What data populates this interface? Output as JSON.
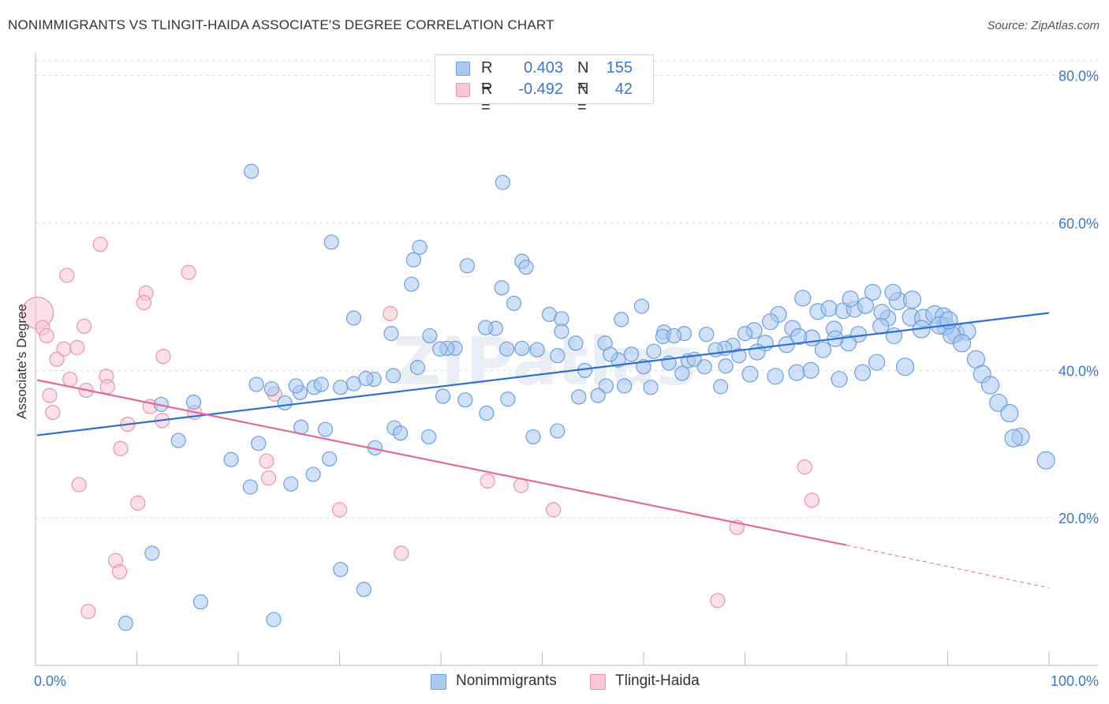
{
  "header": {
    "title": "NONIMMIGRANTS VS TLINGIT-HAIDA ASSOCIATE'S DEGREE CORRELATION CHART",
    "source": "Source: ZipAtlas.com"
  },
  "legend": {
    "rows": [
      {
        "r_label": "R =",
        "r_value": "0.403",
        "n_label": "N =",
        "n_value": "155"
      },
      {
        "r_label": "R =",
        "r_value": "-0.492",
        "n_label": "N =",
        "n_value": "42"
      }
    ],
    "series": [
      "Nonimmigrants",
      "Tlingit-Haida"
    ]
  },
  "colors": {
    "blue_fill": "#aac8f0",
    "blue_stroke": "#6a9fe0",
    "blue_line": "#2f6fcf",
    "pink_fill": "#f8c6d5",
    "pink_stroke": "#ec92ad",
    "pink_line": "#e46a94",
    "tick_text": "#3b78c9",
    "grid": "#d9d9d9"
  },
  "watermark": "ZIPatlas",
  "chart_data": {
    "type": "scatter",
    "title": "NONIMMIGRANTS VS TLINGIT-HAIDA ASSOCIATE'S DEGREE CORRELATION CHART",
    "xlabel": "",
    "ylabel": "Associate's Degree",
    "xlim": [
      0,
      100
    ],
    "ylim": [
      0,
      82
    ],
    "x_tick_labels": [
      "0.0%",
      "100.0%"
    ],
    "y_ticks": [
      20,
      40,
      60,
      80
    ],
    "y_tick_labels": [
      "20.0%",
      "40.0%",
      "60.0%",
      "80.0%"
    ],
    "grid": true,
    "legend_position": "top-center",
    "series": [
      {
        "name": "Nonimmigrants",
        "color": "#6a9fe0",
        "r": 0.403,
        "n": 155,
        "trend": {
          "x": [
            0,
            100
          ],
          "y": [
            31.2,
            47.8
          ]
        },
        "points": [
          [
            21.3,
            67.0
          ],
          [
            46.1,
            65.5
          ],
          [
            29.2,
            57.4
          ],
          [
            37.9,
            56.7
          ],
          [
            37.3,
            55.0
          ],
          [
            42.6,
            54.2
          ],
          [
            48.0,
            54.8
          ],
          [
            48.4,
            54.0
          ],
          [
            37.1,
            51.7
          ],
          [
            46.0,
            51.2
          ],
          [
            47.2,
            49.1
          ],
          [
            31.4,
            47.1
          ],
          [
            50.7,
            47.6
          ],
          [
            51.9,
            47.0
          ],
          [
            59.8,
            48.7
          ],
          [
            57.8,
            46.9
          ],
          [
            45.4,
            45.7
          ],
          [
            35.1,
            45.0
          ],
          [
            38.9,
            44.7
          ],
          [
            51.9,
            45.3
          ],
          [
            53.3,
            43.7
          ],
          [
            62.0,
            45.2
          ],
          [
            64.0,
            45.0
          ],
          [
            61.9,
            44.6
          ],
          [
            63.0,
            44.7
          ],
          [
            66.2,
            44.9
          ],
          [
            68.8,
            43.4
          ],
          [
            68.0,
            43.0
          ],
          [
            70.9,
            45.4
          ],
          [
            73.3,
            47.6
          ],
          [
            75.7,
            49.8
          ],
          [
            77.2,
            48.0
          ],
          [
            78.3,
            48.4
          ],
          [
            79.7,
            48.1
          ],
          [
            80.8,
            48.3
          ],
          [
            81.9,
            48.8
          ],
          [
            84.1,
            47.1
          ],
          [
            85.1,
            49.4
          ],
          [
            86.4,
            47.2
          ],
          [
            83.5,
            47.9
          ],
          [
            80.4,
            49.7
          ],
          [
            82.6,
            50.6
          ],
          [
            84.6,
            50.6
          ],
          [
            86.5,
            49.6
          ],
          [
            87.6,
            47.1
          ],
          [
            88.7,
            47.6
          ],
          [
            89.6,
            47.3
          ],
          [
            90.8,
            45.0
          ],
          [
            91.9,
            45.3
          ],
          [
            89.8,
            46.0
          ],
          [
            74.7,
            45.7
          ],
          [
            72.5,
            46.6
          ],
          [
            70.0,
            45.0
          ],
          [
            76.6,
            44.4
          ],
          [
            78.8,
            45.6
          ],
          [
            81.2,
            44.9
          ],
          [
            83.4,
            46.0
          ],
          [
            87.4,
            45.6
          ],
          [
            89.2,
            46.1
          ],
          [
            90.4,
            44.8
          ],
          [
            91.4,
            43.7
          ],
          [
            92.8,
            41.5
          ],
          [
            93.4,
            39.5
          ],
          [
            94.2,
            38.0
          ],
          [
            95.0,
            35.6
          ],
          [
            96.1,
            34.2
          ],
          [
            97.2,
            31.0
          ],
          [
            99.7,
            27.8
          ],
          [
            96.5,
            30.8
          ],
          [
            90.1,
            46.8
          ],
          [
            56.2,
            43.7
          ],
          [
            57.5,
            41.4
          ],
          [
            58.8,
            42.2
          ],
          [
            61.0,
            42.6
          ],
          [
            64.4,
            41.3
          ],
          [
            67.1,
            42.8
          ],
          [
            69.4,
            42.0
          ],
          [
            72.0,
            43.7
          ],
          [
            74.1,
            43.5
          ],
          [
            77.7,
            42.8
          ],
          [
            80.2,
            43.7
          ],
          [
            84.7,
            44.7
          ],
          [
            78.9,
            44.3
          ],
          [
            75.3,
            44.6
          ],
          [
            71.2,
            42.5
          ],
          [
            68.1,
            40.6
          ],
          [
            65.0,
            41.5
          ],
          [
            62.5,
            41.0
          ],
          [
            60.0,
            40.5
          ],
          [
            58.1,
            37.9
          ],
          [
            56.3,
            37.9
          ],
          [
            54.2,
            40.0
          ],
          [
            51.5,
            42.0
          ],
          [
            49.5,
            42.8
          ],
          [
            48.0,
            43.0
          ],
          [
            46.5,
            42.9
          ],
          [
            44.4,
            45.8
          ],
          [
            41.4,
            43.0
          ],
          [
            40.6,
            43.0
          ],
          [
            39.9,
            42.9
          ],
          [
            37.7,
            40.4
          ],
          [
            35.3,
            39.3
          ],
          [
            33.4,
            38.8
          ],
          [
            27.5,
            37.7
          ],
          [
            31.4,
            38.2
          ],
          [
            32.6,
            38.9
          ],
          [
            30.1,
            37.7
          ],
          [
            26.1,
            37.0
          ],
          [
            22.0,
            30.1
          ],
          [
            15.6,
            35.7
          ],
          [
            25.7,
            37.9
          ],
          [
            28.2,
            38.1
          ],
          [
            23.3,
            37.5
          ],
          [
            21.8,
            38.1
          ],
          [
            24.6,
            35.6
          ],
          [
            12.4,
            35.4
          ],
          [
            26.2,
            32.3
          ],
          [
            28.6,
            32.0
          ],
          [
            14.1,
            30.5
          ],
          [
            35.4,
            32.2
          ],
          [
            36.0,
            31.5
          ],
          [
            33.5,
            29.5
          ],
          [
            29.0,
            28.0
          ],
          [
            27.4,
            25.9
          ],
          [
            25.2,
            24.6
          ],
          [
            21.2,
            24.2
          ],
          [
            19.3,
            27.9
          ],
          [
            11.5,
            15.2
          ],
          [
            16.3,
            8.6
          ],
          [
            8.9,
            5.7
          ],
          [
            23.5,
            6.2
          ],
          [
            30.1,
            13.0
          ],
          [
            32.4,
            10.3
          ],
          [
            38.8,
            31.0
          ],
          [
            40.2,
            36.5
          ],
          [
            42.4,
            36.0
          ],
          [
            44.5,
            34.2
          ],
          [
            46.6,
            36.1
          ],
          [
            49.1,
            31.0
          ],
          [
            51.5,
            31.8
          ],
          [
            53.6,
            36.4
          ],
          [
            55.5,
            36.6
          ],
          [
            56.7,
            42.2
          ],
          [
            60.7,
            37.7
          ],
          [
            63.8,
            39.6
          ],
          [
            66.0,
            40.5
          ],
          [
            67.6,
            37.8
          ],
          [
            70.5,
            39.5
          ],
          [
            73.0,
            39.2
          ],
          [
            75.1,
            39.7
          ],
          [
            76.5,
            40.0
          ],
          [
            79.3,
            38.8
          ],
          [
            81.6,
            39.7
          ],
          [
            83.0,
            41.1
          ],
          [
            85.8,
            40.5
          ]
        ]
      },
      {
        "name": "Tlingit-Haida",
        "color": "#ec92ad",
        "r": -0.492,
        "n": 42,
        "trend": {
          "x": [
            0,
            80
          ],
          "y": [
            38.7,
            16.3
          ]
        },
        "trend_dashed": {
          "x": [
            80,
            100
          ],
          "y": [
            16.3,
            10.5
          ]
        },
        "points": [
          [
            0.2,
            47.8
          ],
          [
            0.7,
            45.8
          ],
          [
            1.1,
            44.7
          ],
          [
            6.4,
            57.1
          ],
          [
            3.1,
            52.9
          ],
          [
            15.1,
            53.3
          ],
          [
            10.9,
            50.5
          ],
          [
            10.7,
            49.2
          ],
          [
            4.8,
            46.0
          ],
          [
            2.8,
            42.9
          ],
          [
            4.1,
            43.1
          ],
          [
            2.1,
            41.5
          ],
          [
            12.6,
            41.9
          ],
          [
            3.4,
            38.8
          ],
          [
            7.0,
            39.2
          ],
          [
            5.0,
            37.3
          ],
          [
            7.1,
            37.8
          ],
          [
            1.4,
            36.6
          ],
          [
            11.3,
            35.1
          ],
          [
            1.7,
            34.3
          ],
          [
            15.7,
            34.3
          ],
          [
            12.5,
            33.2
          ],
          [
            9.1,
            32.7
          ],
          [
            8.4,
            29.4
          ],
          [
            23.6,
            36.8
          ],
          [
            35.0,
            47.7
          ],
          [
            4.3,
            24.5
          ],
          [
            10.1,
            22.0
          ],
          [
            22.8,
            27.7
          ],
          [
            23.0,
            25.4
          ],
          [
            30.0,
            21.1
          ],
          [
            44.6,
            25.0
          ],
          [
            47.9,
            24.4
          ],
          [
            51.1,
            21.1
          ],
          [
            75.9,
            26.9
          ],
          [
            76.6,
            22.4
          ],
          [
            69.2,
            18.7
          ],
          [
            36.1,
            15.2
          ],
          [
            7.9,
            14.2
          ],
          [
            8.3,
            12.7
          ],
          [
            5.2,
            7.3
          ],
          [
            67.3,
            8.8
          ]
        ]
      }
    ]
  }
}
